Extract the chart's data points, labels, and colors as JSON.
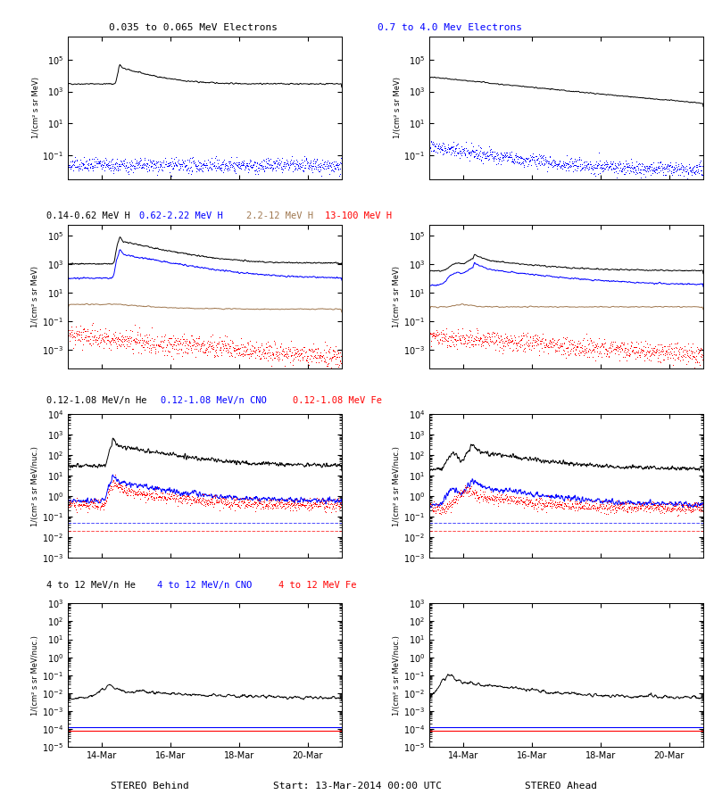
{
  "title_top_black": "0.035 to 0.065 MeV Electrons",
  "title_top_blue": "0.7 to 4.0 Mev Electrons",
  "title_row2": [
    "0.14-0.62 MeV H",
    "0.62-2.22 MeV H",
    "2.2-12 MeV H",
    "13-100 MeV H"
  ],
  "title_row3": [
    "0.12-1.08 MeV/n He",
    "0.12-1.08 MeV/n CNO",
    "0.12-1.08 MeV Fe"
  ],
  "title_row4": [
    "4 to 12 MeV/n He",
    "4 to 12 MeV/n CNO",
    "4 to 12 MeV Fe"
  ],
  "xlabel_left": "STEREO Behind",
  "xlabel_right": "STEREO Ahead",
  "xlabel_center": "Start: 13-Mar-2014 00:00 UTC",
  "xtick_labels": [
    "14-Mar",
    "16-Mar",
    "18-Mar",
    "20-Mar"
  ],
  "ylabel_electrons": "1/(cm² s sr MeV)",
  "ylabel_H": "1/(cm² s sr MeV)",
  "ylabel_heavy": "1/(cm² s sr MeV/nuc.)",
  "background": "#ffffff",
  "colors": {
    "black": "#000000",
    "blue": "#0000ff",
    "brown": "#a07850",
    "red": "#ff0000"
  },
  "row1_ylim": [
    0.003,
    3000000.0
  ],
  "row2_ylim": [
    5e-05,
    500000.0
  ],
  "row3_ylim": [
    0.001,
    10000.0
  ],
  "row4_ylim": [
    1e-05,
    1000.0
  ],
  "n_days": 8,
  "n_pts": 800
}
